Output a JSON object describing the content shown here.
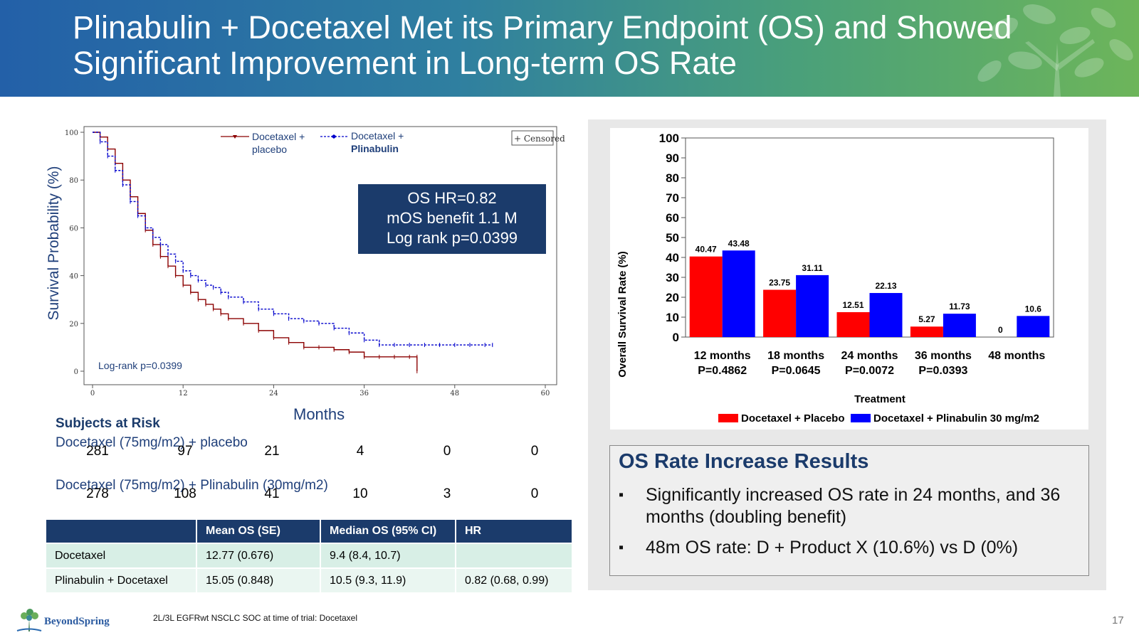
{
  "slide": {
    "title_line1": "Plinabulin + Docetaxel Met its Primary Endpoint (OS) and Showed",
    "title_line2": "Significant Improvement in Long-term OS Rate",
    "footer_note": "2L/3L EGFRwt NSCLC SOC at time of trial: Docetaxel",
    "logo_text": "BeyondSpring",
    "page_number": "17"
  },
  "colors": {
    "red": "#ff0000",
    "blue": "#0000ff",
    "navy": "#1b3b6b",
    "placebo_line": "#8b0000",
    "plinabulin_line": "#0000cc"
  },
  "km": {
    "ylabel": "Survival Probability (%)",
    "xlabel": "Months",
    "legend_placebo_1": "Docetaxel +",
    "legend_placebo_2": "placebo",
    "legend_plin_1": "Docetaxel +",
    "legend_plin_2": "Plinabulin",
    "censored_label": "+ Censored",
    "logrank": "Log-rank p=0.0399",
    "info_line1": "OS HR=0.82",
    "info_line2": "mOS benefit 1.1 M",
    "info_line3": "Log rank p=0.0399",
    "xticks": [
      "0",
      "12",
      "24",
      "36",
      "48",
      "60"
    ],
    "yticks": [
      "0",
      "20",
      "40",
      "60",
      "80",
      "100"
    ]
  },
  "risk": {
    "title": "Subjects at Risk",
    "arm1": "Docetaxel (75mg/m2) + placebo",
    "arm1_counts": [
      "281",
      "97",
      "21",
      "4",
      "0",
      "0"
    ],
    "arm2": "Docetaxel (75mg/m2) + Plinabulin (30mg/m2)",
    "arm2_counts": [
      "278",
      "108",
      "41",
      "10",
      "3",
      "0"
    ]
  },
  "os_table": {
    "headers": [
      "",
      "Mean OS (SE)",
      "Median OS (95% CI)",
      "HR"
    ],
    "rows": [
      [
        "Docetaxel",
        "12.77 (0.676)",
        "9.4 (8.4, 10.7)",
        ""
      ],
      [
        "Plinabulin + Docetaxel",
        "15.05 (0.848)",
        "10.5 (9.3, 11.9)",
        "0.82 (0.68, 0.99)"
      ]
    ]
  },
  "chart_data": [
    {
      "type": "line",
      "xlabel": "Months",
      "ylabel": "Survival Probability (%)",
      "xlim": [
        0,
        60
      ],
      "ylim": [
        0,
        100
      ],
      "series": [
        {
          "name": "Docetaxel + placebo",
          "x": [
            0,
            1,
            2,
            3,
            4,
            5,
            6,
            7,
            8,
            9,
            10,
            11,
            12,
            13,
            14,
            15,
            16,
            17,
            18,
            20,
            22,
            24,
            26,
            28,
            30,
            32,
            34,
            36,
            38,
            40,
            42,
            43,
            43
          ],
          "y": [
            100,
            98,
            93,
            87,
            80,
            73,
            66,
            59,
            53,
            48,
            44,
            40,
            36,
            33,
            30,
            28,
            26,
            24,
            22,
            20,
            17,
            14,
            12,
            10,
            10,
            9,
            8,
            6,
            6,
            6,
            6,
            6,
            0
          ]
        },
        {
          "name": "Docetaxel + Plinabulin",
          "x": [
            0,
            1,
            2,
            3,
            4,
            5,
            6,
            7,
            8,
            9,
            10,
            11,
            12,
            13,
            14,
            15,
            16,
            17,
            18,
            20,
            22,
            24,
            26,
            28,
            30,
            32,
            34,
            36,
            38,
            40,
            42,
            44,
            46,
            48,
            50,
            52,
            53
          ],
          "y": [
            100,
            96,
            90,
            84,
            78,
            71,
            65,
            60,
            56,
            53,
            49,
            46,
            42,
            40,
            38,
            36,
            35,
            33,
            31,
            29,
            26,
            24,
            22,
            21,
            20,
            18,
            16,
            13,
            11,
            11,
            11,
            11,
            11,
            11,
            11,
            11,
            11
          ]
        }
      ]
    },
    {
      "type": "bar",
      "ylabel": "Overall Survival Rate (%)",
      "xlabel": "Treatment",
      "ylim": [
        0,
        100
      ],
      "yticks": [
        "0",
        "10",
        "20",
        "30",
        "40",
        "50",
        "60",
        "70",
        "80",
        "90",
        "100"
      ],
      "categories": [
        "12 months",
        "18 months",
        "24 months",
        "36 months",
        "48 months"
      ],
      "category_pvalues": [
        "P=0.4862",
        "P=0.0645",
        "P=0.0072",
        "P=0.0393",
        ""
      ],
      "series": [
        {
          "name": "Docetaxel + Placebo",
          "values": [
            40.47,
            23.75,
            12.51,
            5.27,
            0
          ],
          "labels": [
            "40.47",
            "23.75",
            "12.51",
            "5.27",
            "0"
          ]
        },
        {
          "name": "Docetaxel + Plinabulin 30 mg/m2",
          "values": [
            43.48,
            31.11,
            22.13,
            11.73,
            10.6
          ],
          "labels": [
            "43.48",
            "31.11",
            "22.13",
            "11.73",
            "10.6"
          ]
        }
      ]
    }
  ],
  "results": {
    "title": "OS Rate Increase Results",
    "bullet1": "Significantly increased OS rate in 24 months, and 36 months (doubling benefit)",
    "bullet2": "48m OS rate: D + Product X (10.6%) vs D (0%)"
  }
}
